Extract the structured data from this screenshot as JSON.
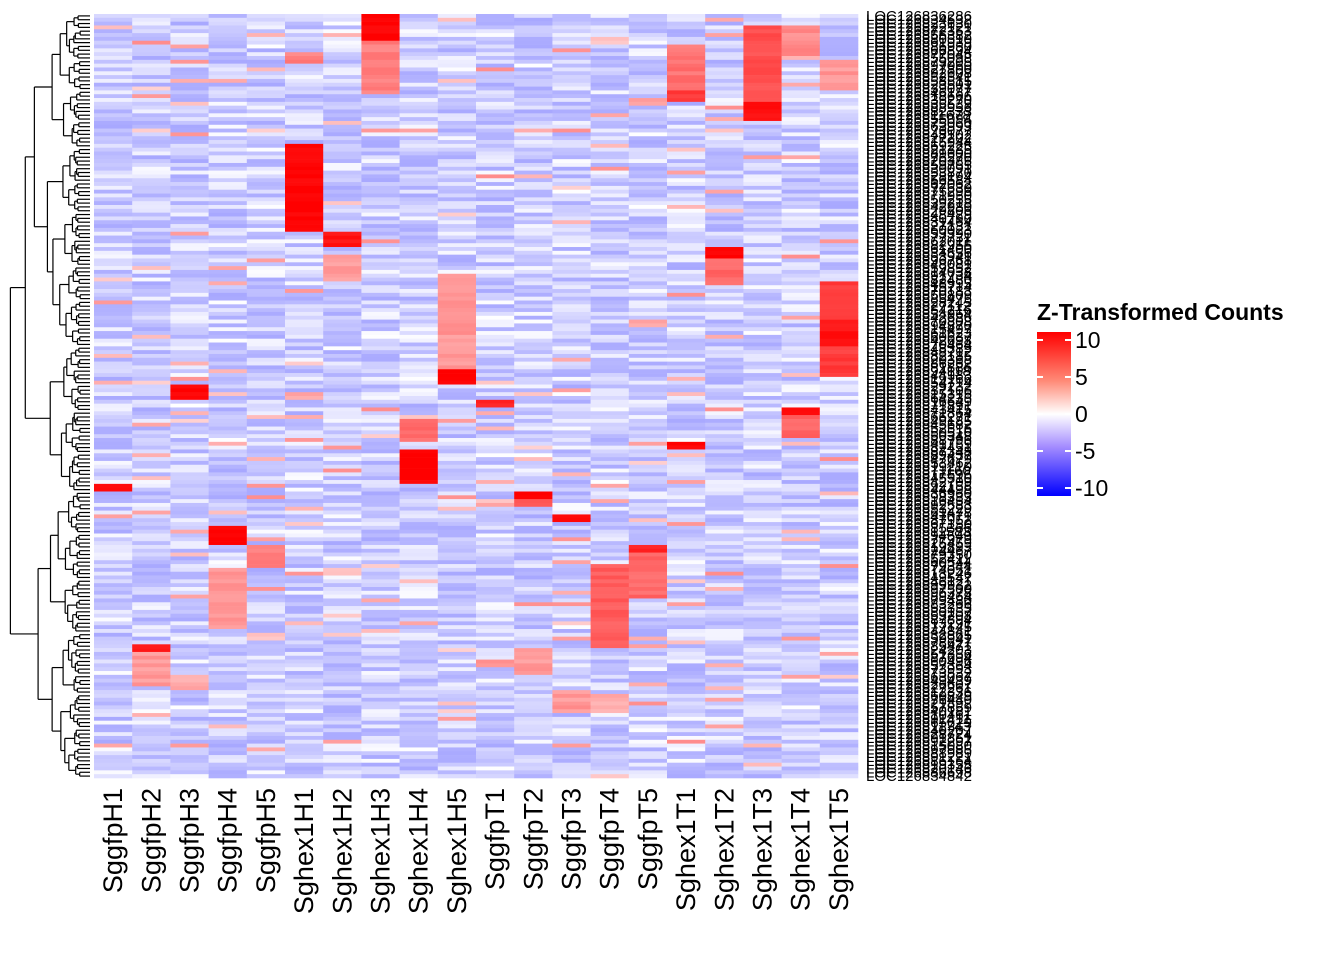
{
  "chart_data": {
    "type": "heatmap",
    "columns": [
      "SggfpH1",
      "SggfpH2",
      "SggfpH3",
      "SggfpH4",
      "SggfpH5",
      "Sghex1H1",
      "Sghex1H2",
      "Sghex1H3",
      "Sghex1H4",
      "Sghex1H5",
      "SggfpT1",
      "SggfpT2",
      "SggfpT3",
      "SggfpT4",
      "SggfpT5",
      "Sghex1T1",
      "Sghex1T2",
      "Sghex1T3",
      "Sghex1T4",
      "Sghex1T5"
    ],
    "row_count": 200,
    "row_label_first": "LOC126836286",
    "row_label_last": "LOC126834842",
    "row_label_prefix": "LOC1268",
    "legend": {
      "title": "Z-Transformed Counts",
      "ticks": [
        10,
        5,
        0,
        -5,
        -10
      ],
      "range": [
        -10,
        10
      ],
      "colors": {
        "low": "#0000ff",
        "mid": "#ffffff",
        "high": "#ff0000"
      }
    },
    "background_value": -1.2,
    "blocks": [
      {
        "col": "Sghex1H3",
        "rows": [
          0,
          6
        ],
        "value": 10
      },
      {
        "col": "Sghex1H3",
        "rows": [
          7,
          20
        ],
        "value": 4
      },
      {
        "col": "Sghex1T3",
        "rows": [
          3,
          22
        ],
        "value": 6
      },
      {
        "col": "Sghex1T3",
        "rows": [
          23,
          27
        ],
        "value": 9
      },
      {
        "col": "Sghex1T1",
        "rows": [
          8,
          19
        ],
        "value": 4.5
      },
      {
        "col": "Sghex1T1",
        "rows": [
          20,
          22
        ],
        "value": 7
      },
      {
        "col": "Sghex1T4",
        "rows": [
          3,
          10
        ],
        "value": 3.5
      },
      {
        "col": "Sghex1T5",
        "rows": [
          12,
          19
        ],
        "value": 3
      },
      {
        "col": "Sghex1H1",
        "rows": [
          10,
          12
        ],
        "value": 4
      },
      {
        "col": "Sghex1H1",
        "rows": [
          34,
          56
        ],
        "value": 10
      },
      {
        "col": "Sghex1H2",
        "rows": [
          57,
          60
        ],
        "value": 9
      },
      {
        "col": "Sghex1H2",
        "rows": [
          63,
          68
        ],
        "value": 3
      },
      {
        "col": "Sghex1T2",
        "rows": [
          61,
          63
        ],
        "value": 10
      },
      {
        "col": "Sghex1T2",
        "rows": [
          64,
          70
        ],
        "value": 5
      },
      {
        "col": "Sghex1T5",
        "rows": [
          70,
          94
        ],
        "value": 7
      },
      {
        "col": "Sghex1T5",
        "rows": [
          80,
          86
        ],
        "value": 9
      },
      {
        "col": "Sghex1H5",
        "rows": [
          68,
          92
        ],
        "value": 3
      },
      {
        "col": "Sghex1H5",
        "rows": [
          93,
          96
        ],
        "value": 10
      },
      {
        "col": "SggfpH3",
        "rows": [
          97,
          100
        ],
        "value": 10
      },
      {
        "col": "SggfpT1",
        "rows": [
          101,
          102
        ],
        "value": 8
      },
      {
        "col": "Sghex1T4",
        "rows": [
          103,
          104
        ],
        "value": 10
      },
      {
        "col": "Sghex1T4",
        "rows": [
          105,
          110
        ],
        "value": 5
      },
      {
        "col": "Sghex1H4",
        "rows": [
          106,
          111
        ],
        "value": 5
      },
      {
        "col": "Sghex1T1",
        "rows": [
          112,
          113
        ],
        "value": 10
      },
      {
        "col": "Sghex1H4",
        "rows": [
          114,
          122
        ],
        "value": 10
      },
      {
        "col": "SggfpH1",
        "rows": [
          123,
          124
        ],
        "value": 10
      },
      {
        "col": "SggfpT2",
        "rows": [
          125,
          126
        ],
        "value": 10
      },
      {
        "col": "SggfpT2",
        "rows": [
          127,
          128
        ],
        "value": 6
      },
      {
        "col": "SggfpT3",
        "rows": [
          131,
          132
        ],
        "value": 10
      },
      {
        "col": "SggfpH4",
        "rows": [
          134,
          138
        ],
        "value": 10
      },
      {
        "col": "SggfpT5",
        "rows": [
          139,
          140
        ],
        "value": 8
      },
      {
        "col": "SggfpT5",
        "rows": [
          141,
          152
        ],
        "value": 5
      },
      {
        "col": "SggfpH5",
        "rows": [
          139,
          144
        ],
        "value": 4
      },
      {
        "col": "SggfpT4",
        "rows": [
          144,
          165
        ],
        "value": 5.5
      },
      {
        "col": "SggfpH4",
        "rows": [
          145,
          160
        ],
        "value": 3
      },
      {
        "col": "SggfpH2",
        "rows": [
          165,
          166
        ],
        "value": 9
      },
      {
        "col": "SggfpH2",
        "rows": [
          167,
          175
        ],
        "value": 3
      },
      {
        "col": "SggfpT2",
        "rows": [
          166,
          172
        ],
        "value": 3
      },
      {
        "col": "SggfpH3",
        "rows": [
          173,
          176
        ],
        "value": 2.5
      },
      {
        "col": "SggfpT3",
        "rows": [
          177,
          182
        ],
        "value": 3
      },
      {
        "col": "SggfpT4",
        "rows": [
          178,
          182
        ],
        "value": 2
      }
    ]
  }
}
